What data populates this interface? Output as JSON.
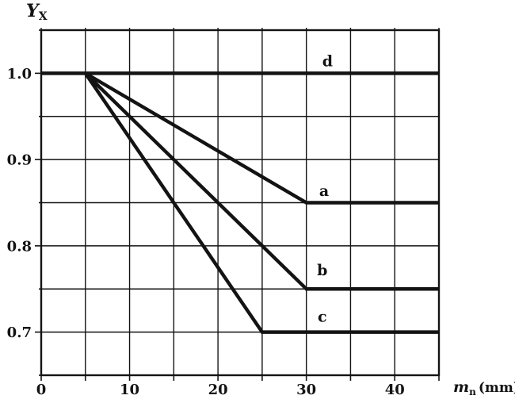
{
  "figure": {
    "paper_color": "#ffffff",
    "ink_color": "#131313"
  },
  "chart_data": {
    "type": "line",
    "title": "",
    "ylabel": {
      "base": "Y",
      "sub": "X"
    },
    "xlabel": {
      "base": "m",
      "sub": "n",
      "unit": "(mm)"
    },
    "xlim": [
      0,
      45
    ],
    "ylim": [
      0.65,
      1.05
    ],
    "x_grid_step": 5,
    "y_grid_step": 0.05,
    "grid": true,
    "legend_position": "inline-labels",
    "x_ticks": [
      {
        "value": 0,
        "label": "0"
      },
      {
        "value": 10,
        "label": "10"
      },
      {
        "value": 20,
        "label": "20"
      },
      {
        "value": 30,
        "label": "30"
      },
      {
        "value": 40,
        "label": "40"
      }
    ],
    "y_ticks": [
      {
        "value": 1.0,
        "label": "1.0"
      },
      {
        "value": 0.9,
        "label": "0.9"
      },
      {
        "value": 0.8,
        "label": "0.8"
      },
      {
        "value": 0.7,
        "label": "0.7"
      }
    ],
    "series": [
      {
        "name": "d",
        "label": "d",
        "points": [
          [
            0,
            1.0
          ],
          [
            45,
            1.0
          ]
        ],
        "label_at": [
          32.4,
          1.014
        ]
      },
      {
        "name": "a",
        "label": "a",
        "points": [
          [
            5,
            1.0
          ],
          [
            30,
            0.85
          ],
          [
            45,
            0.85
          ]
        ],
        "label_at": [
          32.0,
          0.864
        ]
      },
      {
        "name": "b",
        "label": "b",
        "points": [
          [
            5,
            1.0
          ],
          [
            30,
            0.75
          ],
          [
            45,
            0.75
          ]
        ],
        "label_at": [
          31.8,
          0.772
        ]
      },
      {
        "name": "c",
        "label": "c",
        "points": [
          [
            5,
            1.0
          ],
          [
            25,
            0.7
          ],
          [
            45,
            0.7
          ]
        ],
        "label_at": [
          31.8,
          0.718
        ]
      }
    ]
  }
}
